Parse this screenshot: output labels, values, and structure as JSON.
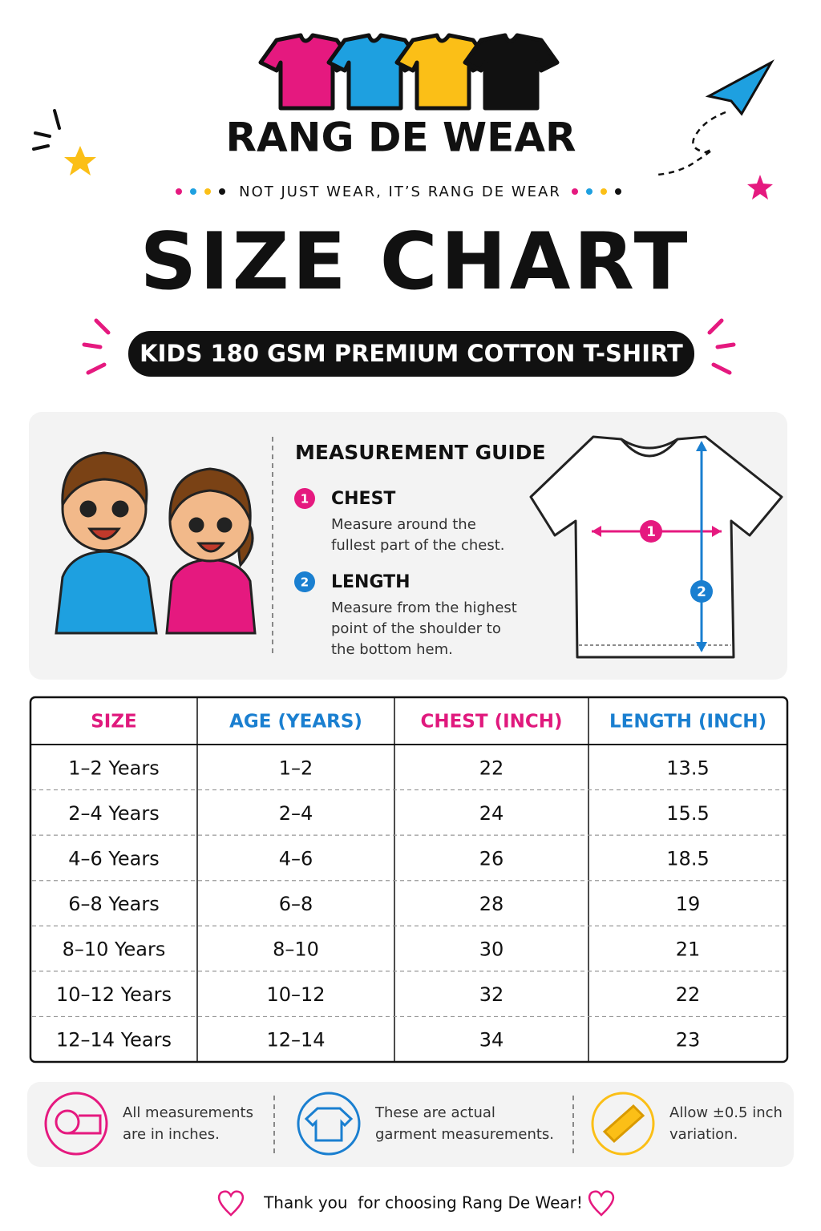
{
  "header": {
    "brand": "RANG DE WEAR",
    "tagline": "NOT JUST WEAR, IT’S RANG DE WEAR",
    "title": "SIZE CHART",
    "subtitle": "KIDS 180 GSM PREMIUM COTTON T-SHIRT"
  },
  "guide": {
    "title": "MEASUREMENT GUIDE",
    "items": [
      {
        "number": "1",
        "label": "CHEST",
        "lines": [
          "Measure around the",
          "fullest part of the chest."
        ]
      },
      {
        "number": "2",
        "label": "LENGTH",
        "lines": [
          "Measure from the highest",
          "point of the shoulder to",
          "the bottom hem."
        ]
      }
    ]
  },
  "table": {
    "headers": [
      "SIZE",
      "AGE (YEARS)",
      "CHEST (INCH)",
      "LENGTH (INCH)"
    ],
    "rows": [
      [
        "1–2 Years",
        "1–2",
        22,
        13.5
      ],
      [
        "2–4 Years",
        "2–4",
        24,
        15.5
      ],
      [
        "4–6 Years",
        "4–6",
        26,
        18.5
      ],
      [
        "6–8 Years",
        "6–8",
        28,
        19
      ],
      [
        "8–10 Years",
        "8–10",
        30,
        21
      ],
      [
        "10–12 Years",
        "10–12",
        32,
        22
      ],
      [
        "12–14 Years",
        "12–14",
        34,
        23
      ]
    ]
  },
  "notes": [
    [
      "All measurements",
      "are in inches."
    ],
    [
      "These are actual",
      "garment measurements."
    ],
    [
      "Allow ±0.5 inch",
      "variation."
    ]
  ],
  "footer": "Thank you  for choosing Rang De Wear!"
}
